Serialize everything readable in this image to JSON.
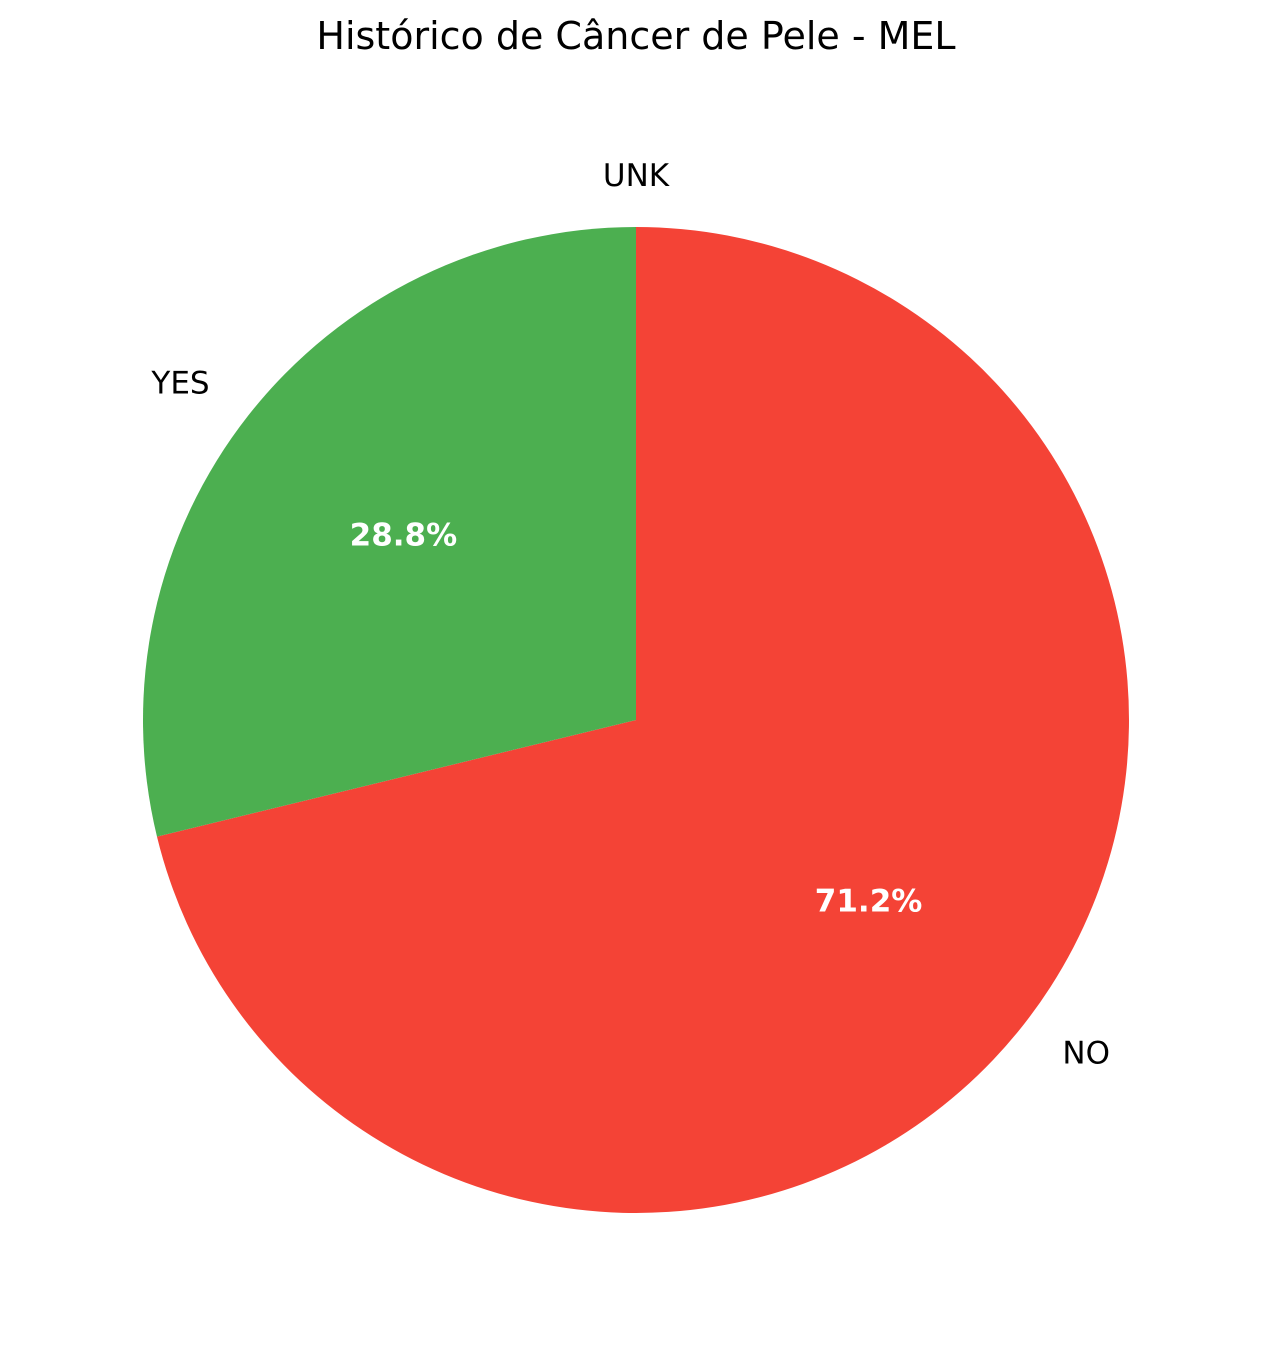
{
  "chart_data": {
    "type": "pie",
    "title": "Histórico de Câncer de Pele - MEL",
    "slices": [
      {
        "label": "UNK",
        "value": 0.0,
        "pct_label": "",
        "color": "#2196F3"
      },
      {
        "label": "NO",
        "value": 71.2,
        "pct_label": "71.2%",
        "color": "#F44336"
      },
      {
        "label": "YES",
        "value": 28.8,
        "pct_label": "28.8%",
        "color": "#4CAF50"
      }
    ],
    "start_angle_deg": 90,
    "direction": "clockwise",
    "label_color": "#000000",
    "pct_color": "#ffffff"
  }
}
